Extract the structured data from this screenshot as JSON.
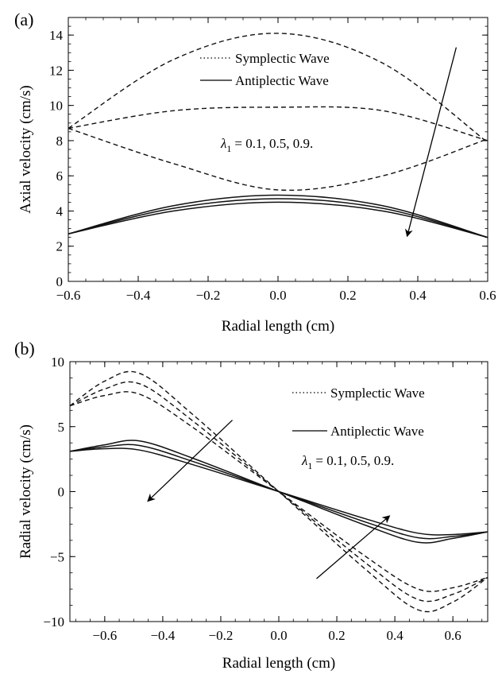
{
  "chart_data": [
    {
      "type": "line",
      "panel_label": "(a)",
      "xlabel": "Radial length (cm)",
      "ylabel": "Axial velocity (cm/s)",
      "xlim": [
        -0.6,
        0.6
      ],
      "ylim": [
        0,
        15
      ],
      "xticks": [
        -0.6,
        -0.4,
        -0.2,
        0.0,
        0.2,
        0.4,
        0.6
      ],
      "xtick_labels": [
        "−0.6",
        "−0.4",
        "−0.2",
        "0.0",
        "0.2",
        "0.4",
        "0.6"
      ],
      "yticks": [
        0,
        2,
        4,
        6,
        8,
        10,
        12,
        14
      ],
      "ytick_labels": [
        "0",
        "2",
        "4",
        "6",
        "8",
        "10",
        "12",
        "14"
      ],
      "grid": false,
      "legend": {
        "position": "top-right",
        "entries": [
          {
            "label": "Symplectic Wave",
            "style": "dotted"
          },
          {
            "label": "Antiplectic Wave",
            "style": "solid"
          }
        ]
      },
      "annotation": {
        "lambda_symbol": "λ",
        "lambda_sub": "1",
        "lambda_values": "= 0.1,  0.5,  0.9."
      },
      "arrows": [
        {
          "from": [
            0.51,
            13.3
          ],
          "to": [
            0.37,
            2.6
          ]
        }
      ],
      "series": [
        {
          "style": "dashed",
          "x": [
            -0.6,
            -0.3,
            0.0,
            0.3,
            0.6
          ],
          "y": [
            8.7,
            12.6,
            14.1,
            12.4,
            7.9
          ]
        },
        {
          "style": "dashed",
          "x": [
            -0.6,
            -0.3,
            0.0,
            0.3,
            0.6
          ],
          "y": [
            8.7,
            9.7,
            9.9,
            9.7,
            8.0
          ]
        },
        {
          "style": "dashed",
          "x": [
            -0.6,
            -0.3,
            0.0,
            0.3,
            0.6
          ],
          "y": [
            8.7,
            6.7,
            5.2,
            6.0,
            8.1
          ]
        },
        {
          "style": "solid",
          "x": [
            -0.6,
            -0.3,
            0.0,
            0.3,
            0.6
          ],
          "y": [
            2.7,
            4.3,
            4.9,
            4.3,
            2.5
          ]
        },
        {
          "style": "solid",
          "x": [
            -0.6,
            -0.3,
            0.0,
            0.3,
            0.6
          ],
          "y": [
            2.7,
            4.15,
            4.7,
            4.15,
            2.5
          ]
        },
        {
          "style": "solid",
          "x": [
            -0.6,
            -0.3,
            0.0,
            0.3,
            0.6
          ],
          "y": [
            2.7,
            4.0,
            4.5,
            4.0,
            2.5
          ]
        }
      ]
    },
    {
      "type": "line",
      "panel_label": "(b)",
      "xlabel": "Radial length (cm)",
      "ylabel": "Radial velocity (cm/s)",
      "xlim": [
        -0.72,
        0.72
      ],
      "ylim": [
        -10,
        10
      ],
      "xticks": [
        -0.6,
        -0.4,
        -0.2,
        0.0,
        0.2,
        0.4,
        0.6
      ],
      "xtick_labels": [
        "−0.6",
        "−0.4",
        "−0.2",
        "0.0",
        "0.2",
        "0.4",
        "0.6"
      ],
      "yticks": [
        -10,
        -5,
        0,
        5,
        10
      ],
      "ytick_labels": [
        "−10",
        "−5",
        "0",
        "5",
        "10"
      ],
      "grid": false,
      "legend": {
        "position": "top-right",
        "entries": [
          {
            "label": "Symplectic Wave",
            "style": "dotted"
          },
          {
            "label": "Antiplectic Wave",
            "style": "solid"
          }
        ]
      },
      "annotation": {
        "lambda_symbol": "λ",
        "lambda_sub": "1",
        "lambda_values": "= 0.1,  0.5,  0.9."
      },
      "arrows": [
        {
          "from": [
            -0.16,
            5.5
          ],
          "to": [
            -0.45,
            -0.7
          ]
        },
        {
          "from": [
            0.13,
            -6.7
          ],
          "to": [
            0.38,
            -1.9
          ]
        }
      ],
      "series": [
        {
          "style": "dashed",
          "x": [
            -0.72,
            -0.6,
            -0.48,
            -0.3,
            0.0,
            0.3,
            0.48,
            0.6,
            0.72
          ],
          "y": [
            6.6,
            8.5,
            9.1,
            6.0,
            0.0,
            -6.0,
            -9.1,
            -8.5,
            -6.6
          ]
        },
        {
          "style": "dashed",
          "x": [
            -0.72,
            -0.6,
            -0.48,
            -0.3,
            0.0,
            0.3,
            0.48,
            0.6,
            0.72
          ],
          "y": [
            6.6,
            7.9,
            8.3,
            5.5,
            0.0,
            -5.5,
            -8.3,
            -7.9,
            -6.6
          ]
        },
        {
          "style": "dashed",
          "x": [
            -0.72,
            -0.6,
            -0.48,
            -0.3,
            0.0,
            0.3,
            0.48,
            0.6,
            0.72
          ],
          "y": [
            6.6,
            7.4,
            7.5,
            5.0,
            0.0,
            -5.0,
            -7.5,
            -7.4,
            -6.6
          ]
        },
        {
          "style": "solid",
          "x": [
            -0.72,
            -0.6,
            -0.48,
            -0.3,
            0.0,
            0.3,
            0.48,
            0.6,
            0.72
          ],
          "y": [
            3.1,
            3.6,
            3.9,
            2.6,
            0.0,
            -2.6,
            -3.9,
            -3.6,
            -3.1
          ]
        },
        {
          "style": "solid",
          "x": [
            -0.72,
            -0.6,
            -0.48,
            -0.3,
            0.0,
            0.3,
            0.48,
            0.6,
            0.72
          ],
          "y": [
            3.1,
            3.45,
            3.55,
            2.35,
            0.0,
            -2.35,
            -3.55,
            -3.45,
            -3.1
          ]
        },
        {
          "style": "solid",
          "x": [
            -0.72,
            -0.6,
            -0.48,
            -0.3,
            0.0,
            0.3,
            0.48,
            0.6,
            0.72
          ],
          "y": [
            3.1,
            3.3,
            3.2,
            2.1,
            0.0,
            -2.1,
            -3.2,
            -3.3,
            -3.1
          ]
        }
      ]
    }
  ]
}
